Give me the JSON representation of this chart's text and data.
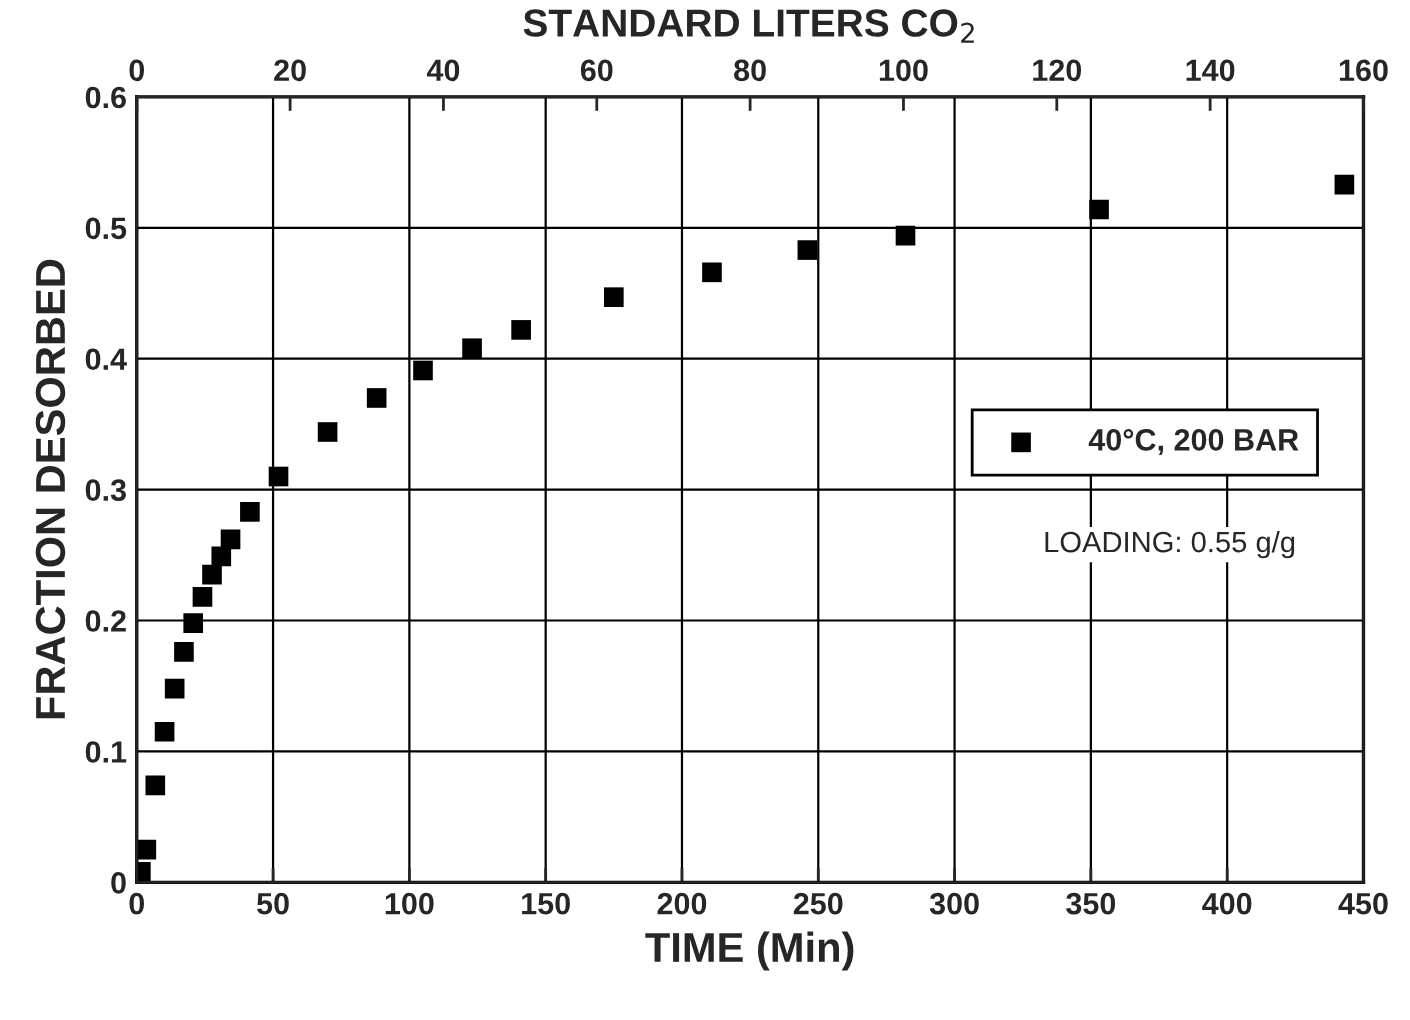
{
  "chart_data": {
    "type": "scatter",
    "xlabel": "TIME (Min)",
    "ylabel": "FRACTION DESORBED",
    "x2label": "STANDARD LITERS CO$_{2}$",
    "x": [
      1.5,
      3.5,
      6.8,
      10.2,
      13.9,
      17.3,
      20.7,
      24.1,
      27.6,
      31,
      34.4,
      41.5,
      52,
      70,
      88,
      105,
      123,
      141,
      175,
      211,
      246,
      282,
      353,
      443
    ],
    "series": [
      {
        "name": "40°C, 200 BAR",
        "color": "#000000",
        "values": [
          0.008,
          0.025,
          0.074,
          0.115,
          0.148,
          0.176,
          0.198,
          0.218,
          0.235,
          0.249,
          0.262,
          0.283,
          0.31,
          0.344,
          0.37,
          0.391,
          0.408,
          0.422,
          0.447,
          0.466,
          0.483,
          0.494,
          0.514,
          0.533
        ]
      }
    ],
    "xlim": [
      0,
      450
    ],
    "xticks": [
      0,
      50,
      100,
      150,
      200,
      250,
      300,
      350,
      400,
      450
    ],
    "x2lim": [
      0,
      160
    ],
    "x2ticks": [
      0,
      20,
      40,
      60,
      80,
      100,
      120,
      140,
      160
    ],
    "ylim": [
      0,
      0.6
    ],
    "yticks": [
      0,
      0.1,
      0.2,
      0.3,
      0.4,
      0.5,
      0.6
    ],
    "annotations": [
      "LOADING: 0.55 g/g"
    ],
    "grid": true,
    "legend": "right",
    "marker": "square"
  }
}
